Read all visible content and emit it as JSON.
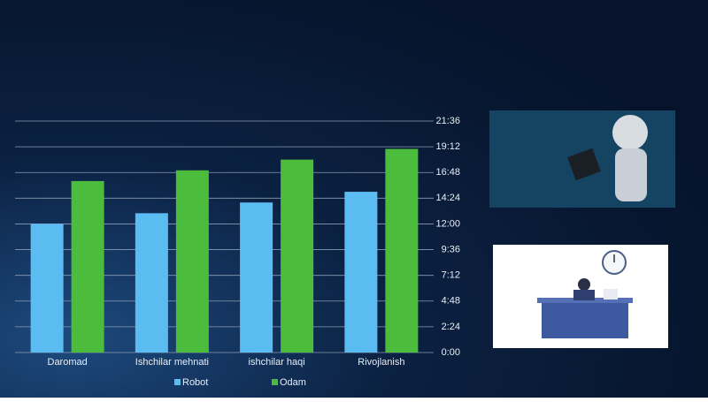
{
  "chart_data": {
    "type": "bar",
    "categories": [
      "Daromad",
      "Ishchilar mehnati",
      "ishchilar haqi",
      "Rivojlanish"
    ],
    "series": [
      {
        "name": "Robot",
        "color": "#5bbcf2",
        "values": [
          12,
          13,
          14,
          15
        ]
      },
      {
        "name": "Odam",
        "color": "#4cbc3c",
        "values": [
          16,
          17,
          18,
          19
        ]
      }
    ],
    "ylim": [
      0,
      21.6
    ],
    "yticks": [
      {
        "value": 0,
        "label": "0:00"
      },
      {
        "value": 2.4,
        "label": "2:24"
      },
      {
        "value": 4.8,
        "label": "4:48"
      },
      {
        "value": 7.2,
        "label": "7:12"
      },
      {
        "value": 9.6,
        "label": "9:36"
      },
      {
        "value": 12,
        "label": "12:00"
      },
      {
        "value": 14.4,
        "label": "14:24"
      },
      {
        "value": 16.8,
        "label": "16:48"
      },
      {
        "value": 19.2,
        "label": "19:12"
      },
      {
        "value": 21.6,
        "label": "21:36"
      }
    ],
    "grid": true,
    "legend": "bottom"
  }
}
